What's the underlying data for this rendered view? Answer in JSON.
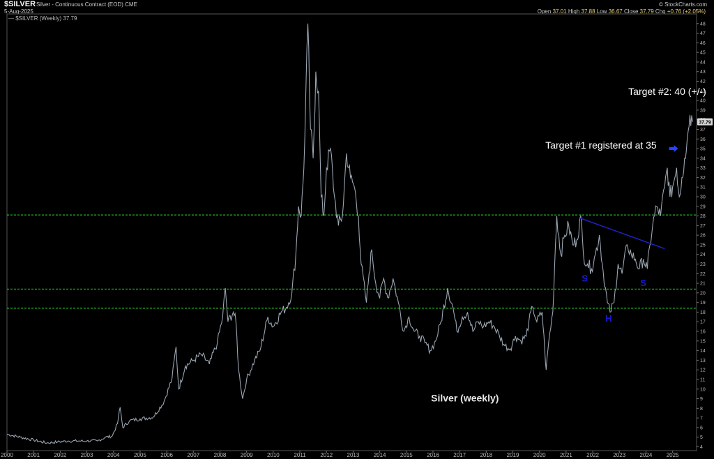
{
  "header": {
    "symbol": "$SILVER",
    "description": "Silver - Continuous Contract (EOD) CME",
    "date": "5-Aug-2025",
    "legend": "— $SILVER (Weekly) 37.79",
    "watermark": "© StockCharts.com",
    "ohlc": {
      "open_label": "Open",
      "open": "37.01",
      "high_label": "High",
      "high": "37.88",
      "low_label": "Low",
      "low": "36.67",
      "close_label": "Close",
      "close": "37.79",
      "chg_label": "Chg",
      "chg": "+0.76 (+2.05%)"
    }
  },
  "chart_data": {
    "type": "line",
    "title": "Silver (weekly)",
    "series_name": "$SILVER (Weekly)",
    "x_ticks": [
      "2000",
      "2001",
      "2002",
      "2003",
      "2004",
      "2005",
      "2006",
      "2007",
      "2008",
      "2009",
      "2010",
      "2011",
      "2012",
      "2013",
      "2014",
      "2015",
      "2016",
      "2017",
      "2018",
      "2019",
      "2020",
      "2021",
      "2022",
      "2023",
      "2024",
      "2025"
    ],
    "y_ticks": [
      4,
      5,
      6,
      7,
      8,
      9,
      10,
      11,
      12,
      13,
      14,
      15,
      16,
      17,
      18,
      19,
      20,
      21,
      22,
      23,
      24,
      25,
      26,
      27,
      28,
      29,
      30,
      31,
      32,
      33,
      34,
      35,
      36,
      37,
      38,
      39,
      40,
      41,
      42,
      43,
      44,
      45,
      46,
      47,
      48
    ],
    "xlim": [
      2000.0,
      2025.9
    ],
    "ylim": [
      3.6,
      49
    ],
    "last_value": 37.79,
    "last_label": "37.79",
    "line_color": "#9aa6b2",
    "series": [
      [
        2000.0,
        5.3
      ],
      [
        2000.5,
        5.0
      ],
      [
        2001.0,
        4.7
      ],
      [
        2001.5,
        4.4
      ],
      [
        2001.9,
        4.5
      ],
      [
        2002.3,
        4.6
      ],
      [
        2002.7,
        4.6
      ],
      [
        2003.0,
        4.6
      ],
      [
        2003.4,
        4.6
      ],
      [
        2003.7,
        5.0
      ],
      [
        2003.95,
        5.1
      ],
      [
        2004.15,
        6.4
      ],
      [
        2004.25,
        8.1
      ],
      [
        2004.35,
        6.0
      ],
      [
        2004.6,
        6.7
      ],
      [
        2005.0,
        6.9
      ],
      [
        2005.5,
        7.1
      ],
      [
        2005.9,
        8.7
      ],
      [
        2006.2,
        11.1
      ],
      [
        2006.35,
        14.4
      ],
      [
        2006.45,
        10.0
      ],
      [
        2006.7,
        12.4
      ],
      [
        2007.0,
        13.0
      ],
      [
        2007.3,
        13.6
      ],
      [
        2007.6,
        12.6
      ],
      [
        2007.9,
        14.8
      ],
      [
        2008.1,
        17.5
      ],
      [
        2008.2,
        20.5
      ],
      [
        2008.3,
        17.0
      ],
      [
        2008.5,
        18.0
      ],
      [
        2008.6,
        17.0
      ],
      [
        2008.7,
        12.0
      ],
      [
        2008.85,
        9.0
      ],
      [
        2009.0,
        11.0
      ],
      [
        2009.3,
        13.0
      ],
      [
        2009.5,
        14.0
      ],
      [
        2009.8,
        17.5
      ],
      [
        2010.0,
        16.5
      ],
      [
        2010.3,
        18.0
      ],
      [
        2010.5,
        18.5
      ],
      [
        2010.7,
        20.0
      ],
      [
        2010.85,
        24.0
      ],
      [
        2010.95,
        29.0
      ],
      [
        2011.05,
        28.0
      ],
      [
        2011.15,
        33.0
      ],
      [
        2011.3,
        48.0
      ],
      [
        2011.4,
        37.0
      ],
      [
        2011.5,
        34.0
      ],
      [
        2011.6,
        43.0
      ],
      [
        2011.7,
        41.0
      ],
      [
        2011.8,
        30.0
      ],
      [
        2011.9,
        28.0
      ],
      [
        2012.0,
        33.0
      ],
      [
        2012.15,
        35.0
      ],
      [
        2012.3,
        30.0
      ],
      [
        2012.45,
        27.0
      ],
      [
        2012.6,
        28.0
      ],
      [
        2012.75,
        34.5
      ],
      [
        2012.9,
        32.0
      ],
      [
        2013.05,
        31.0
      ],
      [
        2013.2,
        28.0
      ],
      [
        2013.3,
        23.0
      ],
      [
        2013.5,
        19.0
      ],
      [
        2013.6,
        22.0
      ],
      [
        2013.7,
        24.5
      ],
      [
        2013.85,
        21.0
      ],
      [
        2014.0,
        19.5
      ],
      [
        2014.15,
        21.5
      ],
      [
        2014.3,
        19.5
      ],
      [
        2014.5,
        21.5
      ],
      [
        2014.7,
        19.0
      ],
      [
        2014.9,
        16.0
      ],
      [
        2015.1,
        17.5
      ],
      [
        2015.3,
        16.0
      ],
      [
        2015.5,
        15.5
      ],
      [
        2015.7,
        14.8
      ],
      [
        2015.9,
        14.0
      ],
      [
        2016.1,
        15.0
      ],
      [
        2016.3,
        17.0
      ],
      [
        2016.55,
        20.5
      ],
      [
        2016.75,
        18.5
      ],
      [
        2016.9,
        16.0
      ],
      [
        2017.1,
        17.5
      ],
      [
        2017.3,
        18.0
      ],
      [
        2017.5,
        16.0
      ],
      [
        2017.7,
        17.0
      ],
      [
        2017.9,
        16.5
      ],
      [
        2018.1,
        17.0
      ],
      [
        2018.3,
        16.5
      ],
      [
        2018.5,
        15.5
      ],
      [
        2018.7,
        14.5
      ],
      [
        2018.9,
        14.2
      ],
      [
        2019.1,
        15.5
      ],
      [
        2019.3,
        15.0
      ],
      [
        2019.5,
        15.5
      ],
      [
        2019.6,
        17.0
      ],
      [
        2019.75,
        18.5
      ],
      [
        2019.9,
        17.0
      ],
      [
        2020.1,
        18.0
      ],
      [
        2020.2,
        14.0
      ],
      [
        2020.25,
        12.0
      ],
      [
        2020.35,
        15.0
      ],
      [
        2020.5,
        18.0
      ],
      [
        2020.6,
        25.0
      ],
      [
        2020.65,
        28.0
      ],
      [
        2020.8,
        24.0
      ],
      [
        2020.95,
        26.0
      ],
      [
        2021.1,
        27.0
      ],
      [
        2021.25,
        25.0
      ],
      [
        2021.4,
        25.5
      ],
      [
        2021.55,
        28.0
      ],
      [
        2021.65,
        24.0
      ],
      [
        2021.8,
        23.0
      ],
      [
        2021.95,
        22.5
      ],
      [
        2022.1,
        24.0
      ],
      [
        2022.25,
        26.0
      ],
      [
        2022.4,
        22.0
      ],
      [
        2022.55,
        19.0
      ],
      [
        2022.65,
        18.0
      ],
      [
        2022.8,
        19.0
      ],
      [
        2022.95,
        23.0
      ],
      [
        2023.1,
        22.0
      ],
      [
        2023.3,
        25.0
      ],
      [
        2023.45,
        24.0
      ],
      [
        2023.6,
        23.5
      ],
      [
        2023.75,
        22.5
      ],
      [
        2023.9,
        23.5
      ],
      [
        2024.05,
        22.5
      ],
      [
        2024.15,
        25.0
      ],
      [
        2024.25,
        27.0
      ],
      [
        2024.4,
        29.0
      ],
      [
        2024.55,
        28.0
      ],
      [
        2024.7,
        31.0
      ],
      [
        2024.8,
        33.0
      ],
      [
        2024.9,
        30.0
      ],
      [
        2025.0,
        31.0
      ],
      [
        2025.15,
        33.0
      ],
      [
        2025.25,
        30.0
      ],
      [
        2025.35,
        32.0
      ],
      [
        2025.45,
        34.0
      ],
      [
        2025.55,
        36.0
      ],
      [
        2025.65,
        38.5
      ],
      [
        2025.75,
        37.79
      ]
    ],
    "hlines": [
      {
        "y": 28.1,
        "color": "#2ee52e"
      },
      {
        "y": 20.4,
        "color": "#2ee52e"
      },
      {
        "y": 18.4,
        "color": "#2ee52e"
      }
    ],
    "trendline": {
      "from": [
        2021.5,
        27.8
      ],
      "to": [
        2024.7,
        24.6
      ],
      "color": "#2222cc"
    },
    "annotations": [
      {
        "text": "Target #2: 40 (+/-)",
        "x": 2024.8,
        "y": 40.6,
        "class": "note",
        "anchor": "middle"
      },
      {
        "text": "Target #1 registered at 35",
        "x": 2024.4,
        "y": 35.0,
        "class": "note",
        "anchor": "end"
      },
      {
        "text": "Silver (weekly)",
        "x": 2017.2,
        "y": 8.7,
        "class": "title",
        "anchor": "middle"
      },
      {
        "text": "S",
        "x": 2021.7,
        "y": 21.2,
        "class": "pat",
        "anchor": "middle"
      },
      {
        "text": "H",
        "x": 2022.6,
        "y": 17.0,
        "class": "pat",
        "anchor": "middle"
      },
      {
        "text": "S",
        "x": 2023.9,
        "y": 20.7,
        "class": "pat",
        "anchor": "middle"
      }
    ],
    "arrow": {
      "x": 2025.05,
      "y": 35.0,
      "color": "#2244ff"
    }
  }
}
